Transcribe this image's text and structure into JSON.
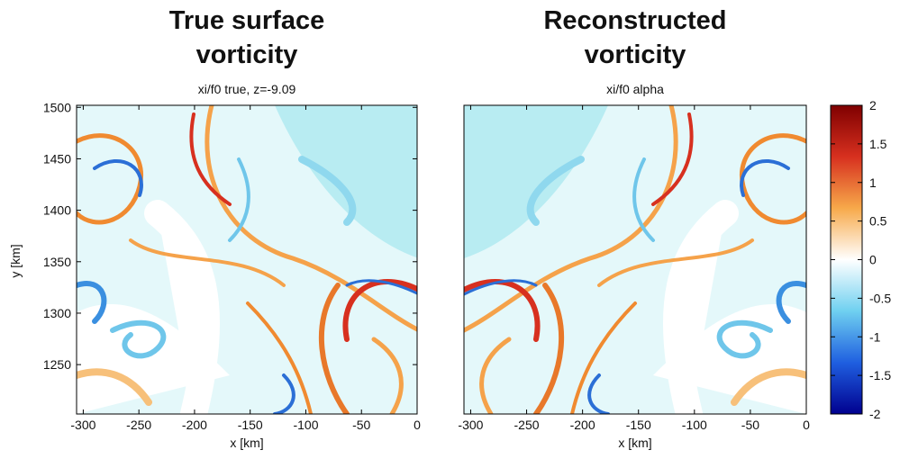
{
  "chart_data": [
    {
      "type": "heatmap",
      "title": [
        "True surface",
        "vorticity"
      ],
      "subtitle": "xi/f0 true, z=-9.09",
      "xlabel": "x [km]",
      "ylabel": "y [km]",
      "xlim": [
        -306,
        0
      ],
      "ylim": [
        1202,
        1502
      ],
      "xticks": [
        -300,
        -250,
        -200,
        -150,
        -100,
        -50,
        0
      ],
      "yticks": [
        1250,
        1300,
        1350,
        1400,
        1450,
        1500
      ]
    },
    {
      "type": "heatmap",
      "title": [
        "Reconstructed",
        "vorticity"
      ],
      "subtitle": "xi/f0 alpha",
      "xlabel": "x [km]",
      "xlim": [
        -306,
        0
      ],
      "ylim": [
        1202,
        1502
      ],
      "xticks": [
        -300,
        -250,
        -200,
        -150,
        -100,
        -50,
        0
      ]
    },
    {
      "type": "colorbar",
      "lim": [
        -2,
        2
      ],
      "ticks": [
        -2,
        -1.5,
        -1,
        -0.5,
        0,
        0.5,
        1,
        1.5,
        2
      ],
      "colormap": [
        "#00008f",
        "#1f5fe0",
        "#6fd0f0",
        "#ffffff",
        "#f7a94a",
        "#d7301f",
        "#7f0000"
      ]
    }
  ]
}
